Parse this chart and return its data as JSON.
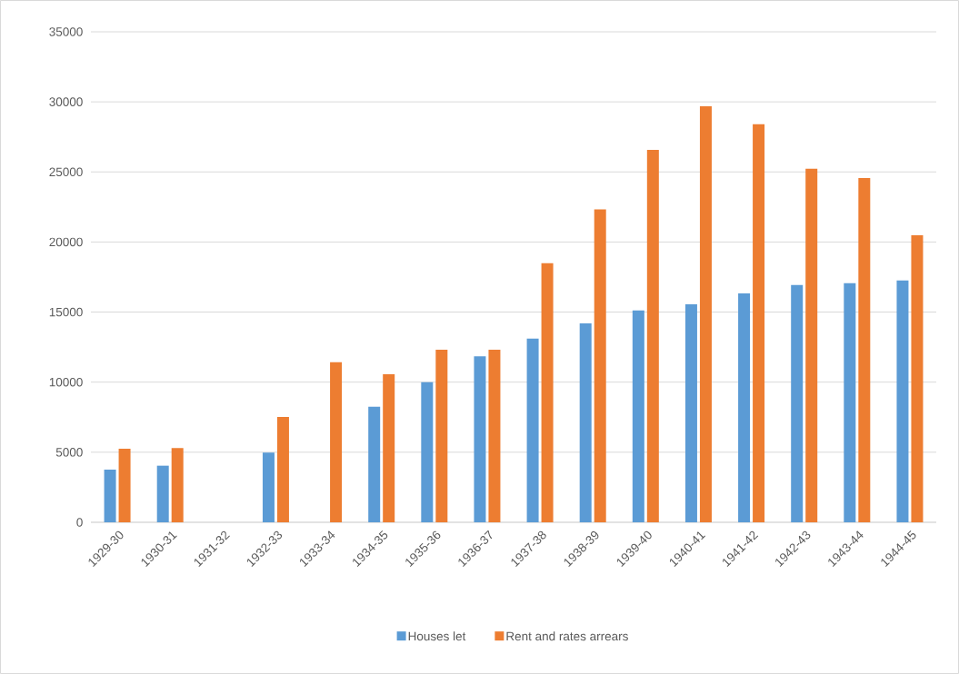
{
  "chart_data": {
    "type": "bar",
    "categories": [
      "1929-30",
      "1930-31",
      "1931-32",
      "1932-33",
      "1933-34",
      "1934-35",
      "1935-36",
      "1936-37",
      "1937-38",
      "1938-39",
      "1939-40",
      "1940-41",
      "1941-42",
      "1942-43",
      "1943-44",
      "1944-45"
    ],
    "series": [
      {
        "name": "Houses let",
        "color": "#5b9bd5",
        "values": [
          3760,
          4040,
          null,
          4970,
          null,
          8250,
          10000,
          11840,
          13110,
          14190,
          15120,
          15550,
          16330,
          16930,
          17060,
          17260
        ]
      },
      {
        "name": "Rent and rates arrears",
        "color": "#ed7d31",
        "values": [
          5250,
          5290,
          null,
          7520,
          11430,
          10560,
          12310,
          12310,
          18490,
          22330,
          26570,
          29680,
          28400,
          25230,
          24560,
          20480
        ]
      }
    ],
    "ylim": [
      0,
      35000
    ],
    "yticks": [
      0,
      5000,
      10000,
      15000,
      20000,
      25000,
      30000,
      35000
    ],
    "grid": "y",
    "legend": "bottom"
  }
}
